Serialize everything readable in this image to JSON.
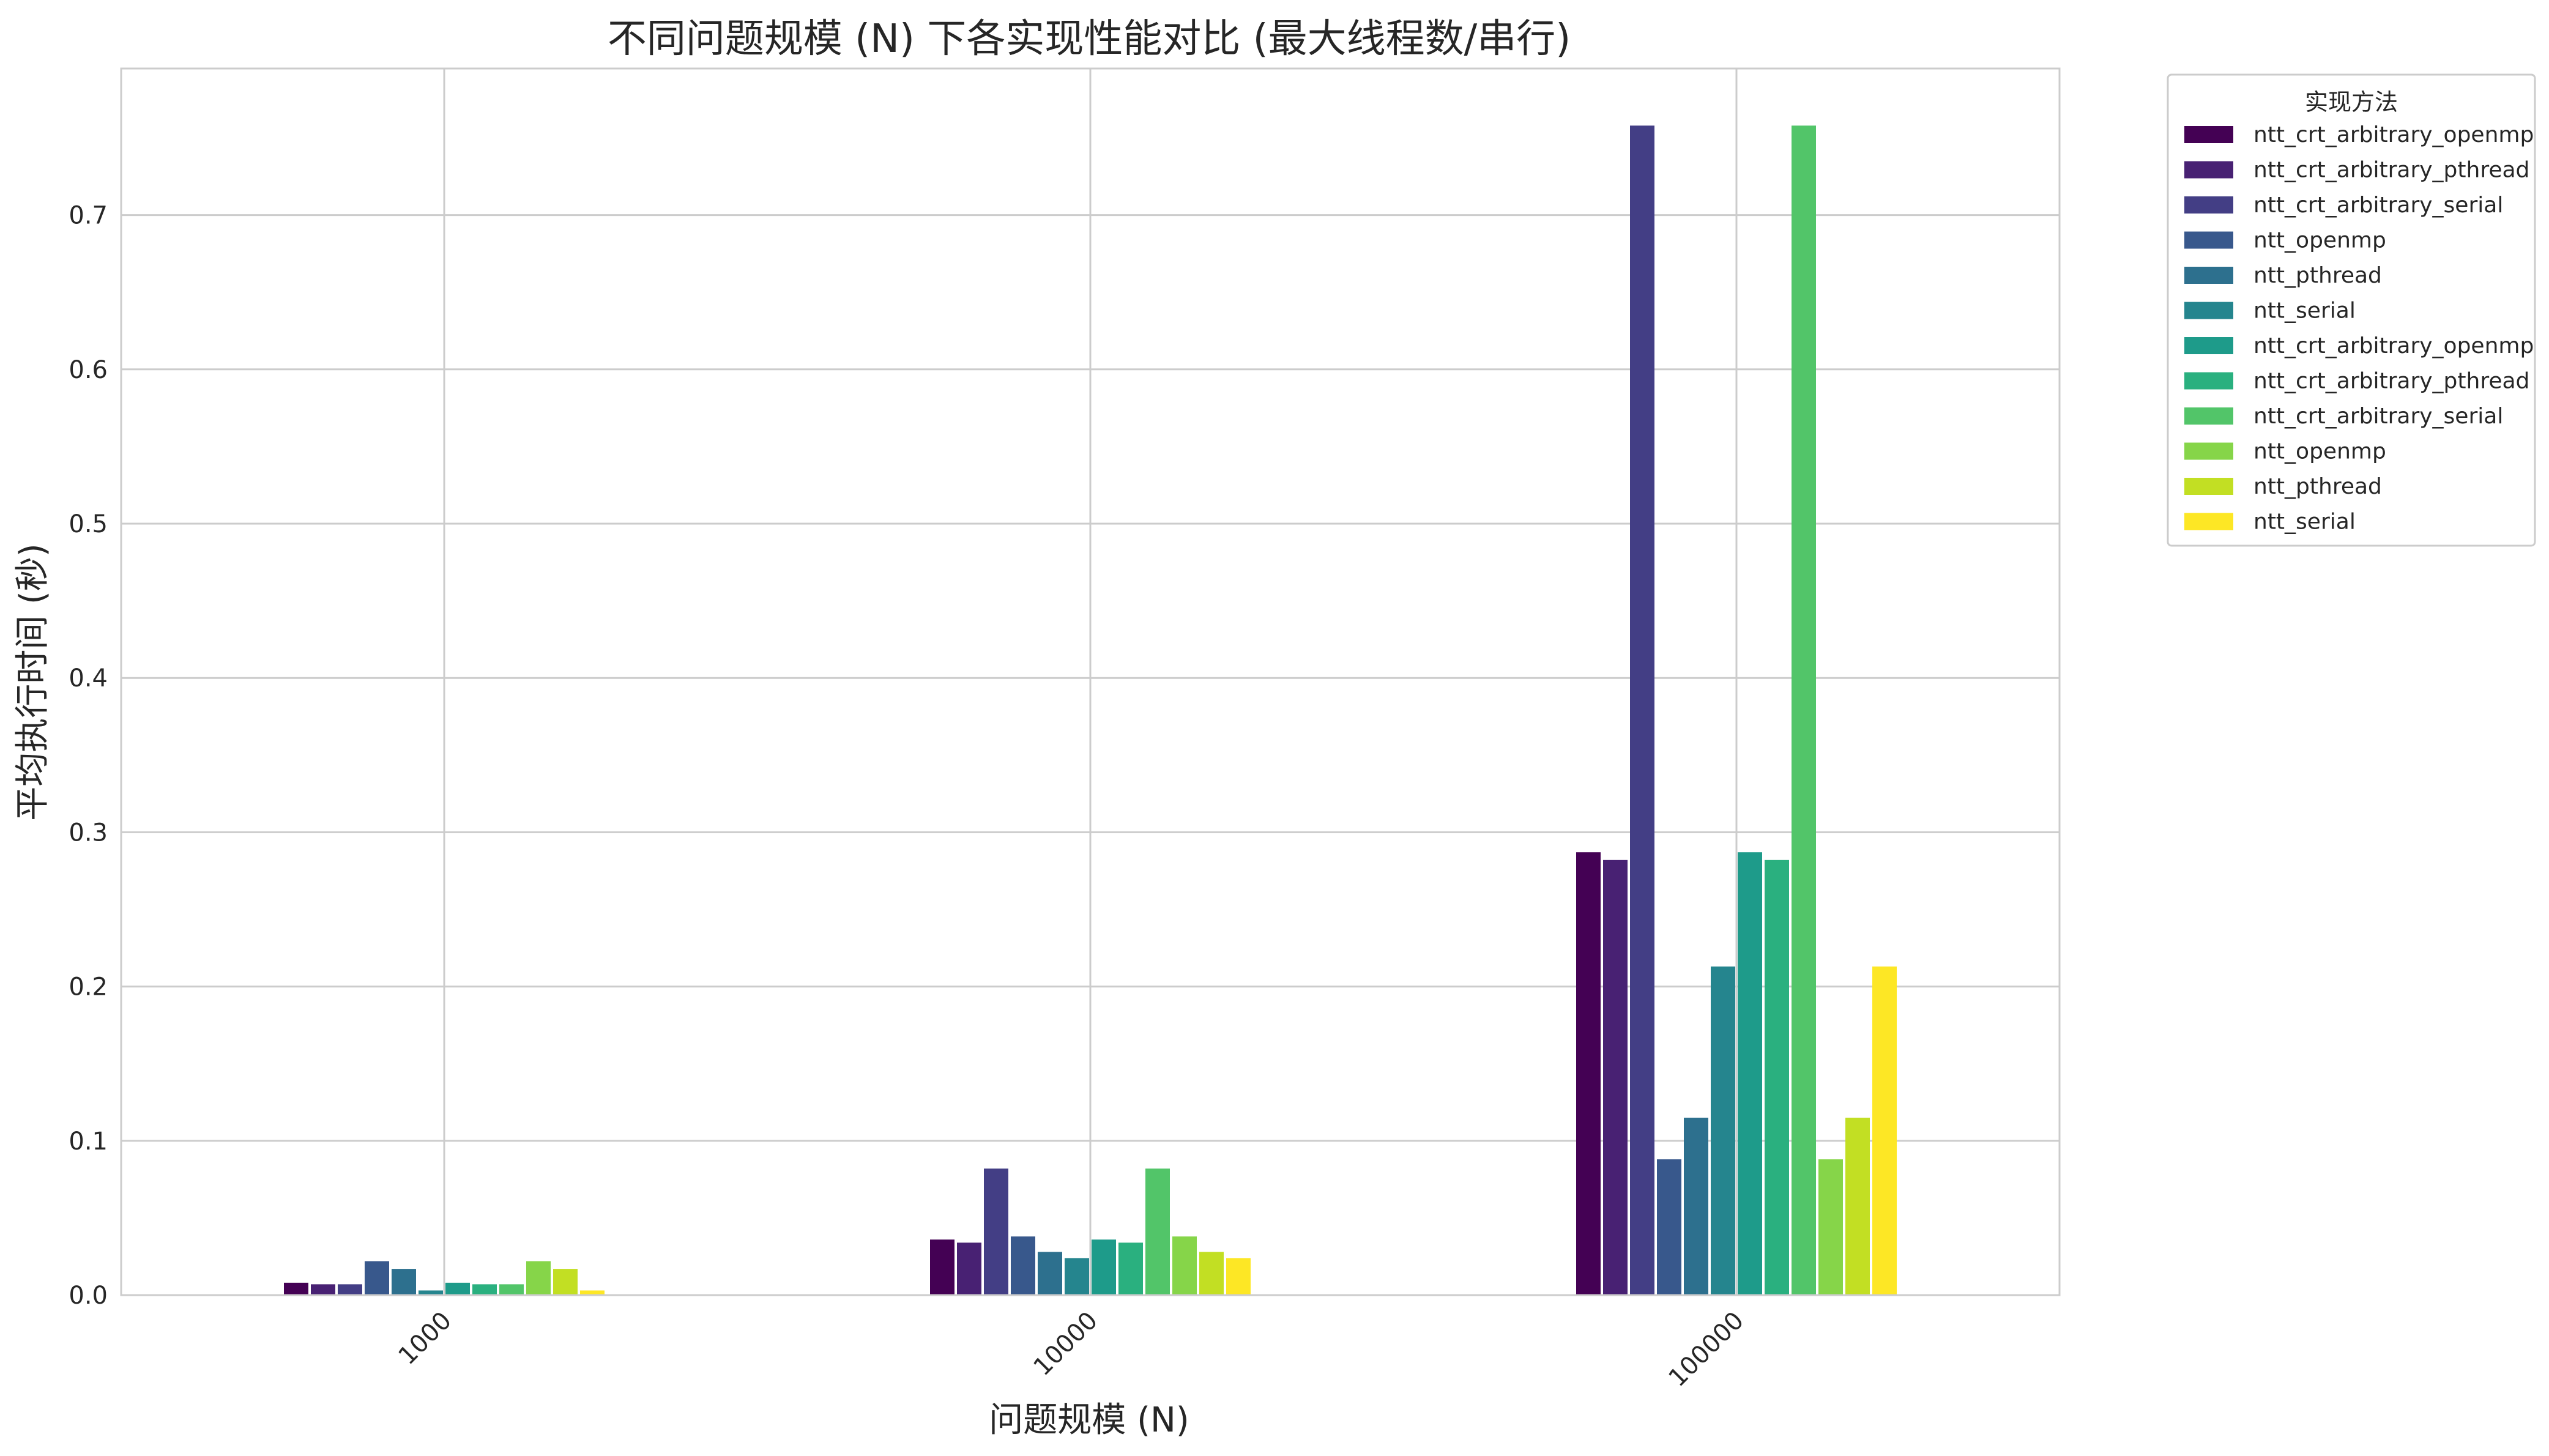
{
  "chart_data": {
    "type": "bar",
    "title": "不同问题规模 (N) 下各实现性能对比 (最大线程数/串行)",
    "xlabel": "问题规模 (N)",
    "ylabel": "平均执行时间 (秒)",
    "categories": [
      "1000",
      "10000",
      "100000"
    ],
    "ylim": [
      0,
      0.795
    ],
    "yticks": [
      "0.0",
      "0.1",
      "0.2",
      "0.3",
      "0.4",
      "0.5",
      "0.6",
      "0.7"
    ],
    "grid": true,
    "legend": {
      "title": "实现方法",
      "placement": "outside-top-right"
    },
    "series": [
      {
        "name": "ntt_crt_arbitrary_openmp",
        "color": "#440154",
        "values": [
          0.008,
          0.036,
          0.287
        ]
      },
      {
        "name": "ntt_crt_arbitrary_pthread",
        "color": "#482173",
        "values": [
          0.007,
          0.034,
          0.282
        ]
      },
      {
        "name": "ntt_crt_arbitrary_serial",
        "color": "#433e85",
        "values": [
          0.007,
          0.082,
          0.758
        ]
      },
      {
        "name": "ntt_openmp",
        "color": "#38588c",
        "values": [
          0.022,
          0.038,
          0.088
        ]
      },
      {
        "name": "ntt_pthread",
        "color": "#2d708e",
        "values": [
          0.017,
          0.028,
          0.115
        ]
      },
      {
        "name": "ntt_serial",
        "color": "#25858e",
        "values": [
          0.003,
          0.024,
          0.213
        ]
      },
      {
        "name": "ntt_crt_arbitrary_openmp",
        "color": "#1e9b8a",
        "values": [
          0.008,
          0.036,
          0.287
        ]
      },
      {
        "name": "ntt_crt_arbitrary_pthread",
        "color": "#2ab07f",
        "values": [
          0.007,
          0.034,
          0.282
        ]
      },
      {
        "name": "ntt_crt_arbitrary_serial",
        "color": "#52c569",
        "values": [
          0.007,
          0.082,
          0.758
        ]
      },
      {
        "name": "ntt_openmp",
        "color": "#86d549",
        "values": [
          0.022,
          0.038,
          0.088
        ]
      },
      {
        "name": "ntt_pthread",
        "color": "#c2df23",
        "values": [
          0.017,
          0.028,
          0.115
        ]
      },
      {
        "name": "ntt_serial",
        "color": "#fde725",
        "values": [
          0.003,
          0.024,
          0.213
        ]
      }
    ]
  }
}
